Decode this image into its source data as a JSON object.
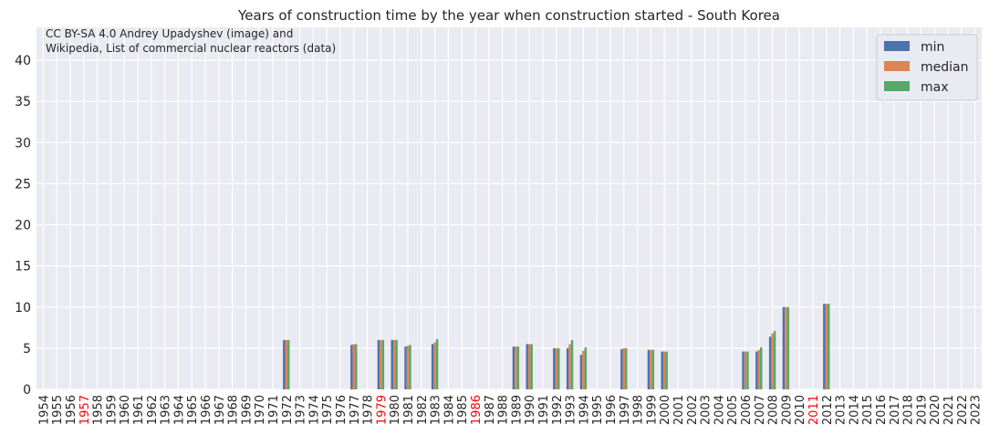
{
  "chart_data": {
    "type": "bar",
    "title": "Years of construction time by the year when construction started - South Korea",
    "xlabel": "",
    "ylabel": "",
    "ylim": [
      0,
      44
    ],
    "yticks": [
      0,
      5,
      10,
      15,
      20,
      25,
      30,
      35,
      40
    ],
    "grid": true,
    "legend_position": "top-right",
    "annotation": [
      "CC BY-SA 4.0 Andrey Upadyshev (image) and",
      "Wikipedia, List of commercial nuclear reactors (data)"
    ],
    "categories": [
      "1954",
      "1955",
      "1956",
      "1957",
      "1958",
      "1959",
      "1960",
      "1961",
      "1962",
      "1963",
      "1964",
      "1965",
      "1966",
      "1967",
      "1968",
      "1969",
      "1970",
      "1971",
      "1972",
      "1973",
      "1974",
      "1975",
      "1976",
      "1977",
      "1978",
      "1979",
      "1980",
      "1981",
      "1982",
      "1983",
      "1984",
      "1985",
      "1986",
      "1987",
      "1988",
      "1989",
      "1990",
      "1991",
      "1992",
      "1993",
      "1994",
      "1995",
      "1996",
      "1997",
      "1998",
      "1999",
      "2000",
      "2001",
      "2002",
      "2003",
      "2004",
      "2005",
      "2006",
      "2007",
      "2008",
      "2009",
      "2010",
      "2011",
      "2012",
      "2013",
      "2014",
      "2015",
      "2016",
      "2017",
      "2018",
      "2019",
      "2020",
      "2021",
      "2022",
      "2023"
    ],
    "highlighted_categories": [
      "1957",
      "1979",
      "1986",
      "2011"
    ],
    "highlight_color": "#ff0000",
    "series": [
      {
        "name": "min",
        "color": "#4c72b0",
        "values": [
          null,
          null,
          null,
          null,
          null,
          null,
          null,
          null,
          null,
          null,
          null,
          null,
          null,
          null,
          null,
          null,
          null,
          null,
          6.0,
          null,
          null,
          null,
          null,
          5.4,
          null,
          6.0,
          6.0,
          5.2,
          null,
          5.5,
          null,
          null,
          null,
          null,
          null,
          5.2,
          5.5,
          null,
          5.0,
          5.0,
          4.2,
          null,
          null,
          4.9,
          null,
          4.8,
          4.6,
          null,
          null,
          null,
          null,
          null,
          4.6,
          4.6,
          6.4,
          10.0,
          null,
          null,
          10.4,
          null,
          null,
          null,
          null,
          null,
          null,
          null,
          null,
          null,
          null,
          null
        ]
      },
      {
        "name": "median",
        "color": "#dd8452",
        "values": [
          null,
          null,
          null,
          null,
          null,
          null,
          null,
          null,
          null,
          null,
          null,
          null,
          null,
          null,
          null,
          null,
          null,
          null,
          6.0,
          null,
          null,
          null,
          null,
          5.5,
          null,
          6.0,
          6.0,
          5.3,
          null,
          5.7,
          null,
          null,
          null,
          null,
          null,
          5.2,
          5.5,
          null,
          5.0,
          5.5,
          4.7,
          null,
          null,
          5.0,
          null,
          4.8,
          4.6,
          null,
          null,
          null,
          null,
          null,
          4.6,
          4.8,
          6.8,
          10.0,
          null,
          null,
          10.4,
          null,
          null,
          null,
          null,
          null,
          null,
          null,
          null,
          null,
          null,
          null
        ]
      },
      {
        "name": "max",
        "color": "#55a868",
        "values": [
          null,
          null,
          null,
          null,
          null,
          null,
          null,
          null,
          null,
          null,
          null,
          null,
          null,
          null,
          null,
          null,
          null,
          null,
          6.0,
          null,
          null,
          null,
          null,
          5.5,
          null,
          6.0,
          6.0,
          5.4,
          null,
          6.1,
          null,
          null,
          null,
          null,
          null,
          5.2,
          5.5,
          null,
          5.0,
          6.0,
          5.1,
          null,
          null,
          5.0,
          null,
          4.8,
          4.6,
          null,
          null,
          null,
          null,
          null,
          4.6,
          5.1,
          7.1,
          10.0,
          null,
          null,
          10.4,
          null,
          null,
          null,
          null,
          null,
          null,
          null,
          null,
          null,
          null,
          null
        ]
      }
    ]
  }
}
